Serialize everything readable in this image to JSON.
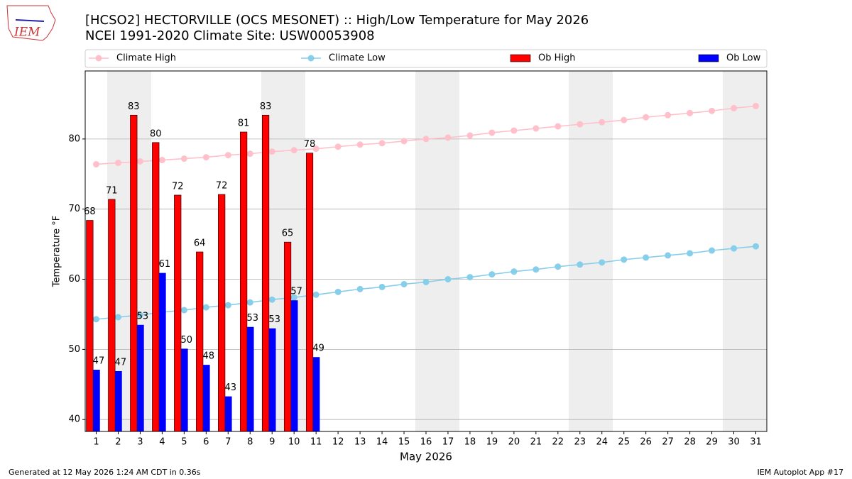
{
  "chart_data": {
    "type": "bar",
    "logo_text": "IEM",
    "title": "[HCSO2] HECTORVILLE (OCS MESONET) :: High/Low Temperature for May 2026",
    "subtitle": "NCEI 1991-2020 Climate Site: USW00053908",
    "xlabel": "May 2026",
    "ylabel": "Temperature °F",
    "footer_left": "Generated at 12 May 2026 1:24 AM CDT in 0.36s",
    "footer_right": "IEM Autoplot App #17",
    "legend": "top",
    "grid": true,
    "x": [
      1,
      2,
      3,
      4,
      5,
      6,
      7,
      8,
      9,
      10,
      11,
      12,
      13,
      14,
      15,
      16,
      17,
      18,
      19,
      20,
      21,
      22,
      23,
      24,
      25,
      26,
      27,
      28,
      29,
      30,
      31
    ],
    "xlim": [
      0.5,
      31.5
    ],
    "xticks": [
      1,
      2,
      3,
      4,
      5,
      6,
      7,
      8,
      9,
      10,
      11,
      12,
      13,
      14,
      15,
      16,
      17,
      18,
      19,
      20,
      21,
      22,
      23,
      24,
      25,
      26,
      27,
      28,
      29,
      30,
      31
    ],
    "ylim": [
      38.3,
      89.7
    ],
    "yticks": [
      40,
      50,
      60,
      70,
      80
    ],
    "series": [
      {
        "name": "Climate High",
        "type": "line",
        "color": "#ffc0cb",
        "values": [
          76.4,
          76.6,
          76.8,
          77.0,
          77.2,
          77.4,
          77.7,
          77.9,
          78.2,
          78.4,
          78.6,
          78.9,
          79.2,
          79.4,
          79.7,
          80.0,
          80.2,
          80.5,
          80.9,
          81.2,
          81.5,
          81.8,
          82.1,
          82.4,
          82.7,
          83.1,
          83.4,
          83.7,
          84.0,
          84.4,
          84.7
        ]
      },
      {
        "name": "Climate Low",
        "type": "line",
        "color": "#87ceeb",
        "values": [
          54.3,
          54.6,
          54.9,
          55.3,
          55.6,
          56.0,
          56.3,
          56.7,
          57.1,
          57.4,
          57.8,
          58.2,
          58.6,
          58.9,
          59.3,
          59.6,
          60.0,
          60.3,
          60.7,
          61.1,
          61.4,
          61.8,
          62.1,
          62.4,
          62.8,
          63.1,
          63.4,
          63.7,
          64.1,
          64.4,
          64.7
        ]
      },
      {
        "name": "Ob High",
        "type": "bar",
        "color": "#ff0000",
        "values": [
          68.4,
          71.4,
          83.4,
          79.5,
          72.0,
          63.9,
          72.1,
          81.0,
          83.4,
          65.3,
          78.0,
          null,
          null,
          null,
          null,
          null,
          null,
          null,
          null,
          null,
          null,
          null,
          null,
          null,
          null,
          null,
          null,
          null,
          null,
          null,
          null
        ],
        "value_labels": [
          "68",
          "71",
          "83",
          "80",
          "72",
          "64",
          "72",
          "81",
          "83",
          "65",
          "78",
          null,
          null,
          null,
          null,
          null,
          null,
          null,
          null,
          null,
          null,
          null,
          null,
          null,
          null,
          null,
          null,
          null,
          null,
          null,
          null
        ]
      },
      {
        "name": "Ob Low",
        "type": "bar",
        "color": "#0000ff",
        "values": [
          47.1,
          46.9,
          53.5,
          60.9,
          50.1,
          47.8,
          43.3,
          53.2,
          53.0,
          57.0,
          48.9,
          null,
          null,
          null,
          null,
          null,
          null,
          null,
          null,
          null,
          null,
          null,
          null,
          null,
          null,
          null,
          null,
          null,
          null,
          null,
          null
        ],
        "value_labels": [
          "47",
          "47",
          "53",
          "61",
          "50",
          "48",
          "43",
          "53",
          "53",
          "57",
          "49",
          null,
          null,
          null,
          null,
          null,
          null,
          null,
          null,
          null,
          null,
          null,
          null,
          null,
          null,
          null,
          null,
          null,
          null,
          null,
          null
        ]
      }
    ]
  }
}
